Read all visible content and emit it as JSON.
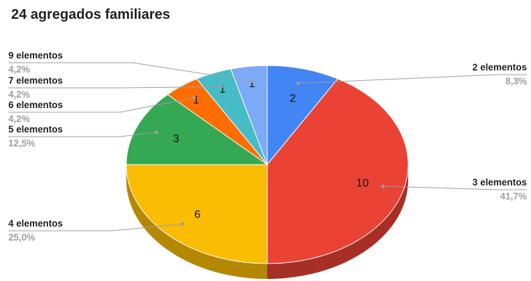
{
  "chart_data": {
    "type": "pie",
    "title": "24 agregados familiares",
    "total": 24,
    "three_d": true,
    "start_angle_deg": 0,
    "direction": "clockwise",
    "slices": [
      {
        "name": "2 elementos",
        "value": 2,
        "percent": "8,3%",
        "color": "#4285F4",
        "side_color": "#2f5fae"
      },
      {
        "name": "3 elementos",
        "value": 10,
        "percent": "41,7%",
        "color": "#EA4335",
        "side_color": "#a72f26"
      },
      {
        "name": "4 elementos",
        "value": 6,
        "percent": "25,0%",
        "color": "#FBBC04",
        "side_color": "#b58803"
      },
      {
        "name": "5 elementos",
        "value": 3,
        "percent": "12,5%",
        "color": "#34A853",
        "side_color": "#25773b"
      },
      {
        "name": "6 elementos",
        "value": 1,
        "percent": "4,2%",
        "color": "#FF6D01",
        "side_color": "#b64e01"
      },
      {
        "name": "7 elementos",
        "value": 1,
        "percent": "4,2%",
        "color": "#46BDC6",
        "side_color": "#32878d"
      },
      {
        "name": "9 elementos",
        "value": 1,
        "percent": "4,2%",
        "color": "#7BAAF7",
        "side_color": "#5879b0"
      }
    ],
    "legend": "leader-line labels around pie",
    "leader_line_color": "#9e9e9e"
  }
}
